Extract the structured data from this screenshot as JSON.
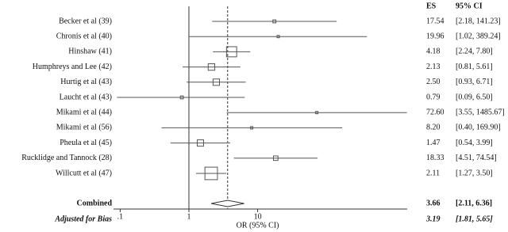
{
  "chart_data": {
    "type": "forest",
    "xlabel": "OR (95% CI)",
    "es_header": "ES",
    "ci_header": "95% CI",
    "log_x": true,
    "xlim": [
      0.08,
      1500
    ],
    "xticks": [
      {
        "value": 0.1,
        "label": ".1"
      },
      1,
      10
    ],
    "null_line": 1,
    "categories": [
      "Becker et al (39)",
      "Chronis et al (40)",
      "Hinshaw (41)",
      "Humphreys and Lee (42)",
      "Hurtig et al (43)",
      "Laucht et al (43)",
      "Mikami et al (44)",
      "Mikami et al (56)",
      "Pheula et al (45)",
      "Rucklidge and Tannock (28)",
      "Willcutt et al (47)"
    ],
    "values": [
      17.54,
      19.96,
      4.18,
      2.13,
      2.5,
      0.79,
      72.6,
      8.2,
      1.47,
      18.33,
      2.11
    ],
    "value_labels": [
      "17.54",
      "19.96",
      "4.18",
      "2.13",
      "2.50",
      "0.79",
      "72.60",
      "8.20",
      "1.47",
      "18.33",
      "2.11"
    ],
    "lower": [
      2.18,
      1.02,
      2.24,
      0.81,
      0.93,
      0.09,
      3.55,
      0.4,
      0.54,
      4.51,
      1.27
    ],
    "upper": [
      141.23,
      389.24,
      7.8,
      5.61,
      6.71,
      6.5,
      1485.67,
      169.9,
      3.99,
      74.54,
      3.5
    ],
    "ci_labels": [
      "[2.18, 141.23]",
      "[1.02, 389.24]",
      "[2.24, 7.80]",
      "[0.81, 5.61]",
      "[0.93, 6.71]",
      "[0.09, 6.50]",
      "[3.55, 1485.67]",
      "[0.40, 169.90]",
      "[0.54, 3.99]",
      "[4.51, 74.54]",
      "[1.27, 3.50]"
    ],
    "color": "#555555",
    "combined": {
      "label": "Combined",
      "value": 3.66,
      "value_label": "3.66",
      "lower": 2.11,
      "upper": 6.36,
      "ci_label": "[2.11, 6.36]"
    },
    "adjusted": {
      "label": "Adjusted for Bias",
      "value": 3.19,
      "value_label": "3.19",
      "lower": 1.81,
      "upper": 5.65,
      "ci_label": "[1.81, 5.65]"
    }
  }
}
